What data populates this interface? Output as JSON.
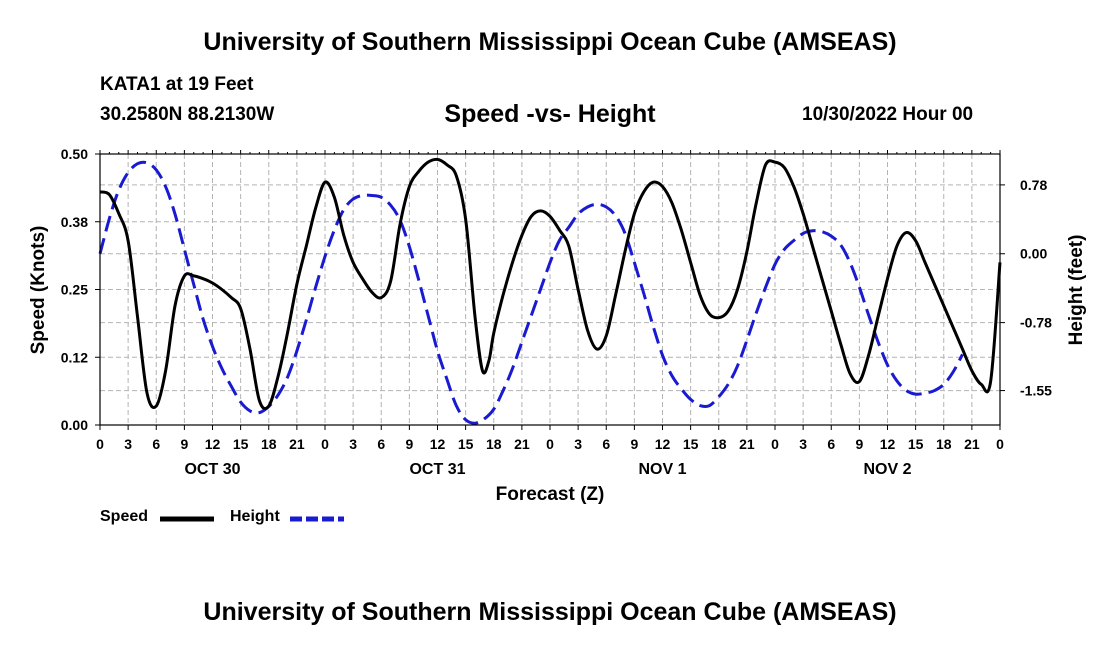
{
  "header": {
    "title": "University of Southern Mississippi Ocean Cube (AMSEAS)",
    "station": "KATA1 at 19 Feet",
    "coords": "30.2580N  88.2130W",
    "subtitle": "Speed -vs- Height",
    "date": "10/30/2022 Hour 00"
  },
  "footer": {
    "title": "University of Southern Mississippi Ocean Cube (AMSEAS)"
  },
  "legend": {
    "speed_label": "Speed",
    "height_label": "Height"
  },
  "colors": {
    "speed": "#000000",
    "height": "#1a1ad0",
    "grid": "#b4b4b4"
  },
  "chart_data": {
    "type": "line",
    "title": "Speed -vs- Height",
    "xlabel": "Forecast (Z)",
    "ylabel": "Speed (Knots)",
    "y2label": "Height (feet)",
    "xlim": [
      0,
      96
    ],
    "ylim": [
      0,
      0.5
    ],
    "y2lim": [
      -1.94,
      1.13
    ],
    "yticks": [
      0,
      0.125,
      0.25,
      0.375,
      0.5
    ],
    "yticklabels": [
      "0.00",
      "0.12",
      "0.25",
      "0.38",
      "0.50"
    ],
    "y2ticks": [
      0.78,
      0,
      -0.78,
      -1.55
    ],
    "y2ticklabels": [
      "0.78",
      "0.00",
      "-0.78",
      "-1.55"
    ],
    "xticks": [
      0,
      3,
      6,
      9,
      12,
      15,
      18,
      21,
      24,
      27,
      30,
      33,
      36,
      39,
      42,
      45,
      48,
      51,
      54,
      57,
      60,
      63,
      66,
      69,
      72,
      75,
      78,
      81,
      84,
      87,
      90,
      93,
      96
    ],
    "xticklabels": [
      "0",
      "3",
      "6",
      "9",
      "12",
      "15",
      "18",
      "21",
      "0",
      "3",
      "6",
      "9",
      "12",
      "15",
      "18",
      "21",
      "0",
      "3",
      "6",
      "9",
      "12",
      "15",
      "18",
      "21",
      "0",
      "3",
      "6",
      "9",
      "12",
      "15",
      "18",
      "21",
      "0"
    ],
    "day_labels": [
      {
        "x": 12,
        "label": "OCT 30"
      },
      {
        "x": 36,
        "label": "OCT 31"
      },
      {
        "x": 60,
        "label": "NOV 1"
      },
      {
        "x": 84,
        "label": "NOV 2"
      }
    ],
    "grid": true,
    "series": [
      {
        "name": "Speed",
        "axis": "left",
        "style": "solid",
        "points": [
          [
            0,
            0.43
          ],
          [
            1,
            0.425
          ],
          [
            2,
            0.39
          ],
          [
            3,
            0.34
          ],
          [
            4,
            0.2
          ],
          [
            5,
            0.06
          ],
          [
            6,
            0.035
          ],
          [
            7,
            0.1
          ],
          [
            8,
            0.22
          ],
          [
            9,
            0.275
          ],
          [
            10,
            0.275
          ],
          [
            11,
            0.27
          ],
          [
            12,
            0.262
          ],
          [
            13,
            0.25
          ],
          [
            14,
            0.235
          ],
          [
            15,
            0.215
          ],
          [
            16,
            0.14
          ],
          [
            17,
            0.045
          ],
          [
            18,
            0.035
          ],
          [
            19,
            0.09
          ],
          [
            20,
            0.17
          ],
          [
            21,
            0.26
          ],
          [
            22,
            0.33
          ],
          [
            23,
            0.4
          ],
          [
            24,
            0.448
          ],
          [
            25,
            0.42
          ],
          [
            26,
            0.35
          ],
          [
            27,
            0.3
          ],
          [
            28,
            0.27
          ],
          [
            29,
            0.245
          ],
          [
            30,
            0.235
          ],
          [
            31,
            0.265
          ],
          [
            32,
            0.37
          ],
          [
            33,
            0.44
          ],
          [
            34,
            0.468
          ],
          [
            35,
            0.485
          ],
          [
            36,
            0.49
          ],
          [
            37,
            0.48
          ],
          [
            38,
            0.46
          ],
          [
            39,
            0.38
          ],
          [
            40,
            0.2
          ],
          [
            40.8,
            0.1
          ],
          [
            41.5,
            0.12
          ],
          [
            42,
            0.17
          ],
          [
            43,
            0.24
          ],
          [
            44,
            0.3
          ],
          [
            45,
            0.35
          ],
          [
            46,
            0.385
          ],
          [
            47,
            0.395
          ],
          [
            48,
            0.385
          ],
          [
            49,
            0.36
          ],
          [
            50,
            0.33
          ],
          [
            51,
            0.25
          ],
          [
            52,
            0.175
          ],
          [
            53,
            0.14
          ],
          [
            54,
            0.165
          ],
          [
            55,
            0.24
          ],
          [
            56,
            0.32
          ],
          [
            57,
            0.39
          ],
          [
            58,
            0.43
          ],
          [
            59,
            0.448
          ],
          [
            60,
            0.44
          ],
          [
            61,
            0.41
          ],
          [
            62,
            0.36
          ],
          [
            63,
            0.3
          ],
          [
            64,
            0.24
          ],
          [
            65,
            0.205
          ],
          [
            66,
            0.198
          ],
          [
            67,
            0.21
          ],
          [
            68,
            0.25
          ],
          [
            69,
            0.32
          ],
          [
            70,
            0.41
          ],
          [
            71,
            0.48
          ],
          [
            72,
            0.485
          ],
          [
            73,
            0.475
          ],
          [
            74,
            0.44
          ],
          [
            75,
            0.39
          ],
          [
            76,
            0.33
          ],
          [
            77,
            0.27
          ],
          [
            78,
            0.21
          ],
          [
            79,
            0.15
          ],
          [
            80,
            0.095
          ],
          [
            81,
            0.08
          ],
          [
            82,
            0.13
          ],
          [
            83,
            0.2
          ],
          [
            84,
            0.27
          ],
          [
            85,
            0.33
          ],
          [
            86,
            0.355
          ],
          [
            87,
            0.34
          ],
          [
            88,
            0.3
          ],
          [
            89,
            0.26
          ],
          [
            90,
            0.22
          ],
          [
            91,
            0.18
          ],
          [
            92,
            0.14
          ],
          [
            93,
            0.1
          ],
          [
            94,
            0.075
          ],
          [
            95,
            0.08
          ],
          [
            96,
            0.3
          ]
        ]
      },
      {
        "name": "Height",
        "axis": "right",
        "style": "dashed",
        "points": [
          [
            0,
            0.0
          ],
          [
            1,
            0.4
          ],
          [
            2,
            0.72
          ],
          [
            3,
            0.92
          ],
          [
            4,
            1.02
          ],
          [
            5,
            1.03
          ],
          [
            6,
            0.95
          ],
          [
            7,
            0.76
          ],
          [
            8,
            0.45
          ],
          [
            9,
            0.05
          ],
          [
            10,
            -0.35
          ],
          [
            11,
            -0.74
          ],
          [
            12,
            -1.05
          ],
          [
            13,
            -1.3
          ],
          [
            14,
            -1.5
          ],
          [
            15,
            -1.68
          ],
          [
            16,
            -1.78
          ],
          [
            17,
            -1.8
          ],
          [
            18,
            -1.73
          ],
          [
            19,
            -1.6
          ],
          [
            20,
            -1.4
          ],
          [
            21,
            -1.1
          ],
          [
            22,
            -0.75
          ],
          [
            23,
            -0.38
          ],
          [
            24,
            -0.03
          ],
          [
            25,
            0.27
          ],
          [
            26,
            0.5
          ],
          [
            27,
            0.62
          ],
          [
            28,
            0.66
          ],
          [
            29,
            0.66
          ],
          [
            30,
            0.64
          ],
          [
            31,
            0.55
          ],
          [
            32,
            0.38
          ],
          [
            33,
            0.08
          ],
          [
            34,
            -0.3
          ],
          [
            35,
            -0.7
          ],
          [
            36,
            -1.1
          ],
          [
            37,
            -1.42
          ],
          [
            38,
            -1.72
          ],
          [
            39,
            -1.88
          ],
          [
            40,
            -1.92
          ],
          [
            41,
            -1.87
          ],
          [
            42,
            -1.76
          ],
          [
            43,
            -1.55
          ],
          [
            44,
            -1.3
          ],
          [
            45,
            -1.0
          ],
          [
            46,
            -0.7
          ],
          [
            47,
            -0.4
          ],
          [
            48,
            -0.1
          ],
          [
            49,
            0.15
          ],
          [
            50,
            0.3
          ],
          [
            51,
            0.45
          ],
          [
            52,
            0.53
          ],
          [
            53,
            0.56
          ],
          [
            54,
            0.53
          ],
          [
            55,
            0.43
          ],
          [
            56,
            0.23
          ],
          [
            57,
            -0.1
          ],
          [
            58,
            -0.45
          ],
          [
            59,
            -0.82
          ],
          [
            60,
            -1.15
          ],
          [
            61,
            -1.38
          ],
          [
            62,
            -1.53
          ],
          [
            63,
            -1.65
          ],
          [
            64,
            -1.72
          ],
          [
            65,
            -1.72
          ],
          [
            66,
            -1.62
          ],
          [
            67,
            -1.48
          ],
          [
            68,
            -1.27
          ],
          [
            69,
            -0.98
          ],
          [
            70,
            -0.67
          ],
          [
            71,
            -0.38
          ],
          [
            72,
            -0.12
          ],
          [
            73,
            0.05
          ],
          [
            74,
            0.15
          ],
          [
            75,
            0.23
          ],
          [
            76,
            0.26
          ],
          [
            77,
            0.25
          ],
          [
            78,
            0.2
          ],
          [
            79,
            0.1
          ],
          [
            80,
            -0.1
          ],
          [
            81,
            -0.38
          ],
          [
            82,
            -0.7
          ],
          [
            83,
            -1.0
          ],
          [
            84,
            -1.26
          ],
          [
            85,
            -1.44
          ],
          [
            86,
            -1.55
          ],
          [
            87,
            -1.59
          ],
          [
            88,
            -1.58
          ],
          [
            89,
            -1.55
          ],
          [
            90,
            -1.48
          ],
          [
            91,
            -1.34
          ],
          [
            92,
            -1.14
          ]
        ]
      }
    ]
  }
}
